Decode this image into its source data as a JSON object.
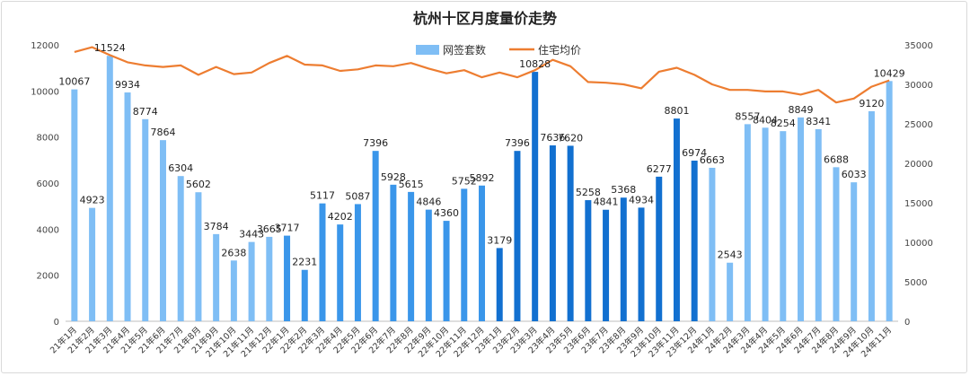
{
  "chart_data": {
    "type": "bar",
    "title": "杭州十区月度量价走势",
    "categories": [
      "21年1月",
      "21年2月",
      "21年3月",
      "21年4月",
      "21年5月",
      "21年6月",
      "21年7月",
      "21年8月",
      "21年9月",
      "21年10月",
      "21年11月",
      "21年12月",
      "22年1月",
      "22年2月",
      "22年3月",
      "22年4月",
      "22年5月",
      "22年6月",
      "22年7月",
      "22年8月",
      "22年9月",
      "22年10月",
      "22年11月",
      "22年12月",
      "23年1月",
      "23年2月",
      "23年3月",
      "23年4月",
      "23年5月",
      "23年6月",
      "23年7月",
      "23年8月",
      "23年9月",
      "23年10月",
      "23年11月",
      "23年12月",
      "24年1月",
      "24年2月",
      "24年3月",
      "24年4月",
      "24年5月",
      "24年6月",
      "24年7月",
      "24年8月",
      "24年9月",
      "24年10月",
      "24年11月"
    ],
    "series": [
      {
        "name": "网签套数",
        "kind": "bar",
        "axis": "left",
        "color": "#7fbef5",
        "values": [
          10067,
          4923,
          11524,
          9934,
          8774,
          7864,
          6304,
          5602,
          3784,
          2638,
          3443,
          3665,
          3717,
          2231,
          5117,
          4202,
          5087,
          7396,
          5928,
          5615,
          4846,
          4360,
          5752,
          5892,
          3179,
          7396,
          10828,
          7636,
          7620,
          5258,
          4841,
          5368,
          4934,
          6277,
          8801,
          6974,
          6663,
          2543,
          8557,
          8404,
          8254,
          8849,
          8341,
          6688,
          6033,
          9120,
          10429
        ]
      },
      {
        "name": "住宅均价",
        "kind": "line",
        "axis": "right",
        "color": "#ed7d31",
        "values": [
          34100,
          34700,
          33700,
          32800,
          32400,
          32200,
          32400,
          31200,
          32200,
          31300,
          31500,
          32700,
          33600,
          32500,
          32400,
          31700,
          31900,
          32400,
          32300,
          32700,
          32000,
          31400,
          31800,
          30900,
          31500,
          30900,
          31800,
          33100,
          32300,
          30300,
          30200,
          30000,
          29500,
          31600,
          32100,
          31200,
          30000,
          29300,
          29300,
          29100,
          29100,
          28700,
          29300,
          27700,
          28200,
          29700,
          30500
        ]
      }
    ],
    "bar_colors": {
      "light": "#7fbef5",
      "medium": "#3a96ea",
      "dark": "#1270d0"
    },
    "bar_shade": [
      "light",
      "light",
      "light",
      "light",
      "light",
      "light",
      "light",
      "light",
      "light",
      "light",
      "light",
      "light",
      "medium",
      "medium",
      "medium",
      "medium",
      "medium",
      "medium",
      "medium",
      "medium",
      "medium",
      "medium",
      "medium",
      "medium",
      "dark",
      "dark",
      "dark",
      "dark",
      "dark",
      "dark",
      "dark",
      "dark",
      "dark",
      "dark",
      "dark",
      "dark",
      "light",
      "light",
      "light",
      "light",
      "light",
      "light",
      "light",
      "light",
      "light",
      "light",
      "light"
    ],
    "y_left": {
      "min": 0,
      "max": 12000,
      "ticks": [
        0,
        2000,
        4000,
        6000,
        8000,
        10000,
        12000
      ]
    },
    "y_right": {
      "min": 0,
      "max": 35000,
      "ticks": [
        0,
        5000,
        10000,
        15000,
        20000,
        25000,
        30000,
        35000
      ]
    },
    "grid": false,
    "legend": "top-center"
  }
}
